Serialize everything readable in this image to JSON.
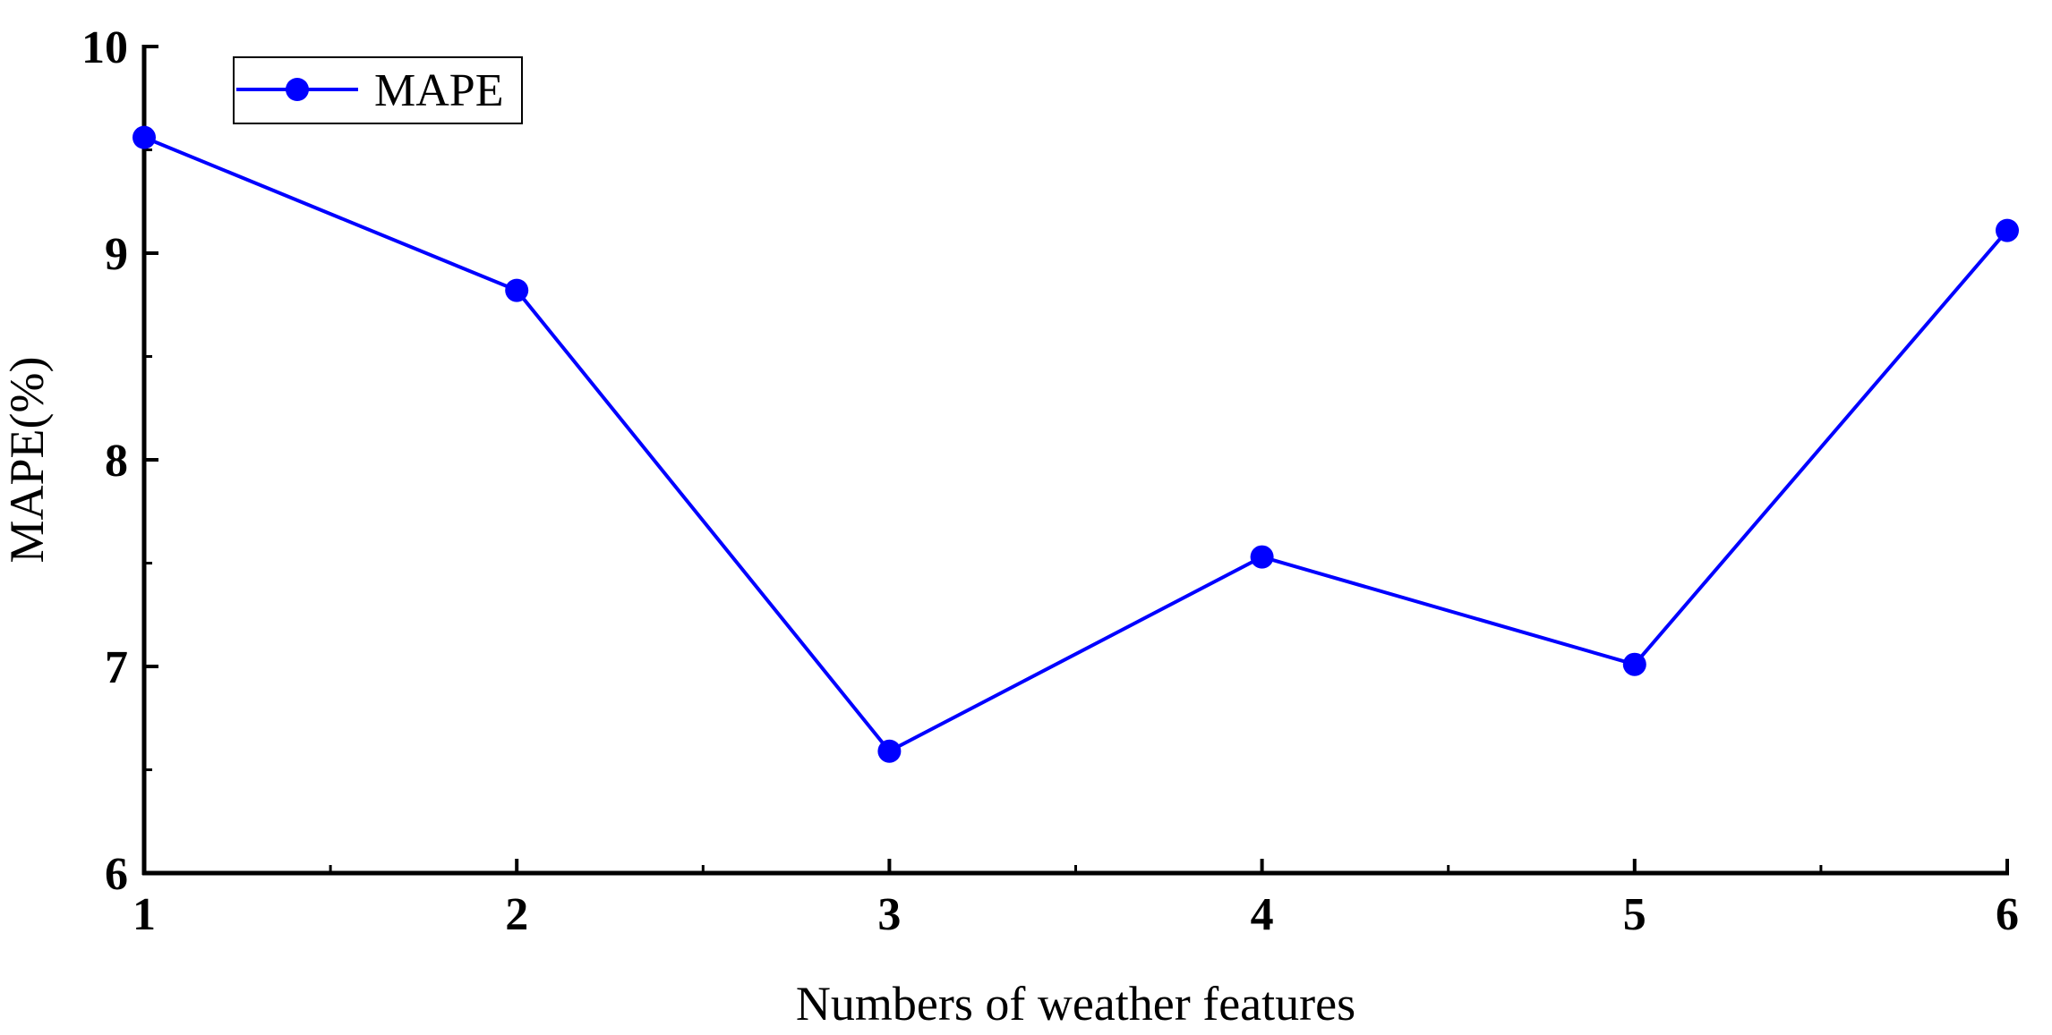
{
  "chart_data": {
    "type": "line",
    "title": "",
    "xlabel": "Numbers of weather features",
    "ylabel": "MAPE(%)",
    "x": [
      1,
      2,
      3,
      4,
      5,
      6
    ],
    "xticks": [
      "1",
      "2",
      "3",
      "4",
      "5",
      "6"
    ],
    "yticks": [
      "6",
      "7",
      "8",
      "9",
      "10"
    ],
    "xlim": [
      1,
      6
    ],
    "ylim": [
      6,
      10
    ],
    "grid": false,
    "legend_position": "top-left",
    "series": [
      {
        "name": "MAPE",
        "color": "#0000ff",
        "marker": "circle",
        "values": [
          9.56,
          8.82,
          6.59,
          7.53,
          7.01,
          9.11
        ]
      }
    ]
  }
}
